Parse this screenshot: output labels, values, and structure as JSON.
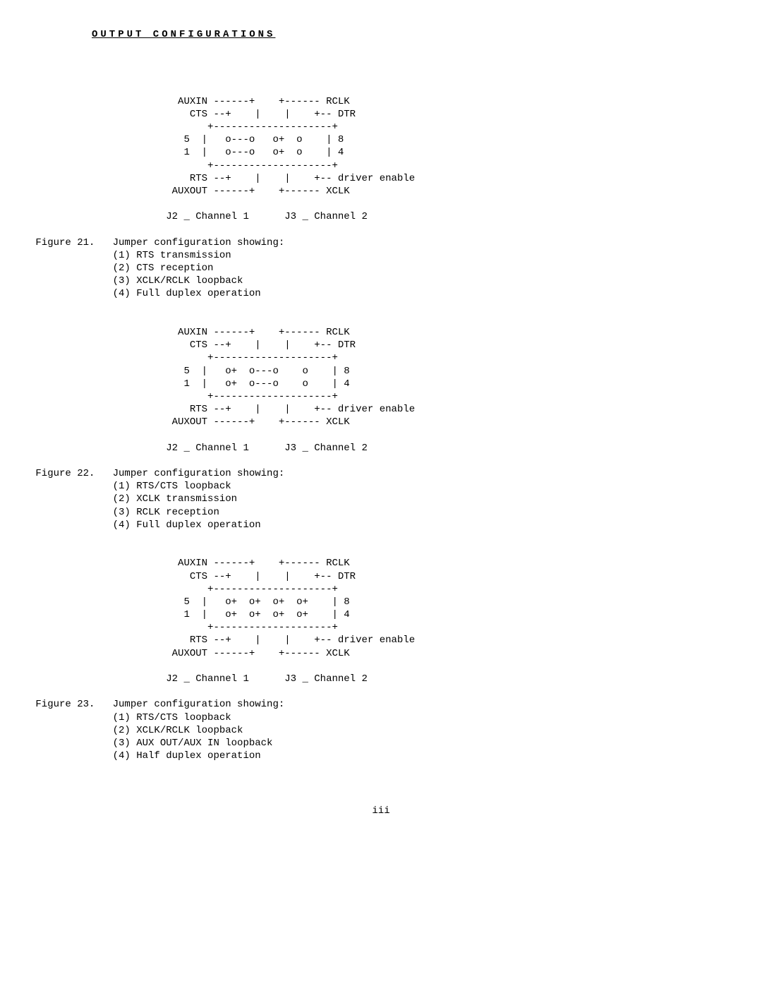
{
  "title": "OUTPUT CONFIGURATIONS",
  "page_number": "iii",
  "figures": [
    {
      "diagram": "          AUXIN ------+    +------ RCLK\n            CTS --+    |    |    +-- DTR\n               +--------------------+\n           5  |   o---o   o+  o    | 8\n           1  |   o---o   o+  o    | 4\n               +--------------------+\n            RTS --+    |    |    +-- driver enable\n         AUXOUT ------+    +------ XCLK\n\n        J2 _ Channel 1      J3 _ Channel 2",
      "caption_title": "Figure 21.   Jumper configuration showing:",
      "items": [
        "(1) RTS transmission",
        "(2) CTS reception",
        "(3) XCLK/RCLK loopback",
        "(4) Full duplex operation"
      ]
    },
    {
      "diagram": "          AUXIN ------+    +------ RCLK\n            CTS --+    |    |    +-- DTR\n               +--------------------+\n           5  |   o+  o---o    o    | 8\n           1  |   o+  o---o    o    | 4\n               +--------------------+\n            RTS --+    |    |    +-- driver enable\n         AUXOUT ------+    +------ XCLK\n\n        J2 _ Channel 1      J3 _ Channel 2",
      "caption_title": "Figure 22.   Jumper configuration showing:",
      "items": [
        "(1) RTS/CTS loopback",
        "(2) XCLK transmission",
        "(3) RCLK reception",
        "(4) Full duplex operation"
      ]
    },
    {
      "diagram": "          AUXIN ------+    +------ RCLK\n            CTS --+    |    |    +-- DTR\n               +--------------------+\n           5  |   o+  o+  o+  o+    | 8\n           1  |   o+  o+  o+  o+    | 4\n               +--------------------+\n            RTS --+    |    |    +-- driver enable\n         AUXOUT ------+    +------ XCLK\n\n        J2 _ Channel 1      J3 _ Channel 2",
      "caption_title": "Figure 23.   Jumper configuration showing:",
      "items": [
        "(1) RTS/CTS loopback",
        "(2) XCLK/RCLK loopback",
        "(3) AUX OUT/AUX IN loopback",
        "(4) Half duplex operation"
      ]
    }
  ]
}
